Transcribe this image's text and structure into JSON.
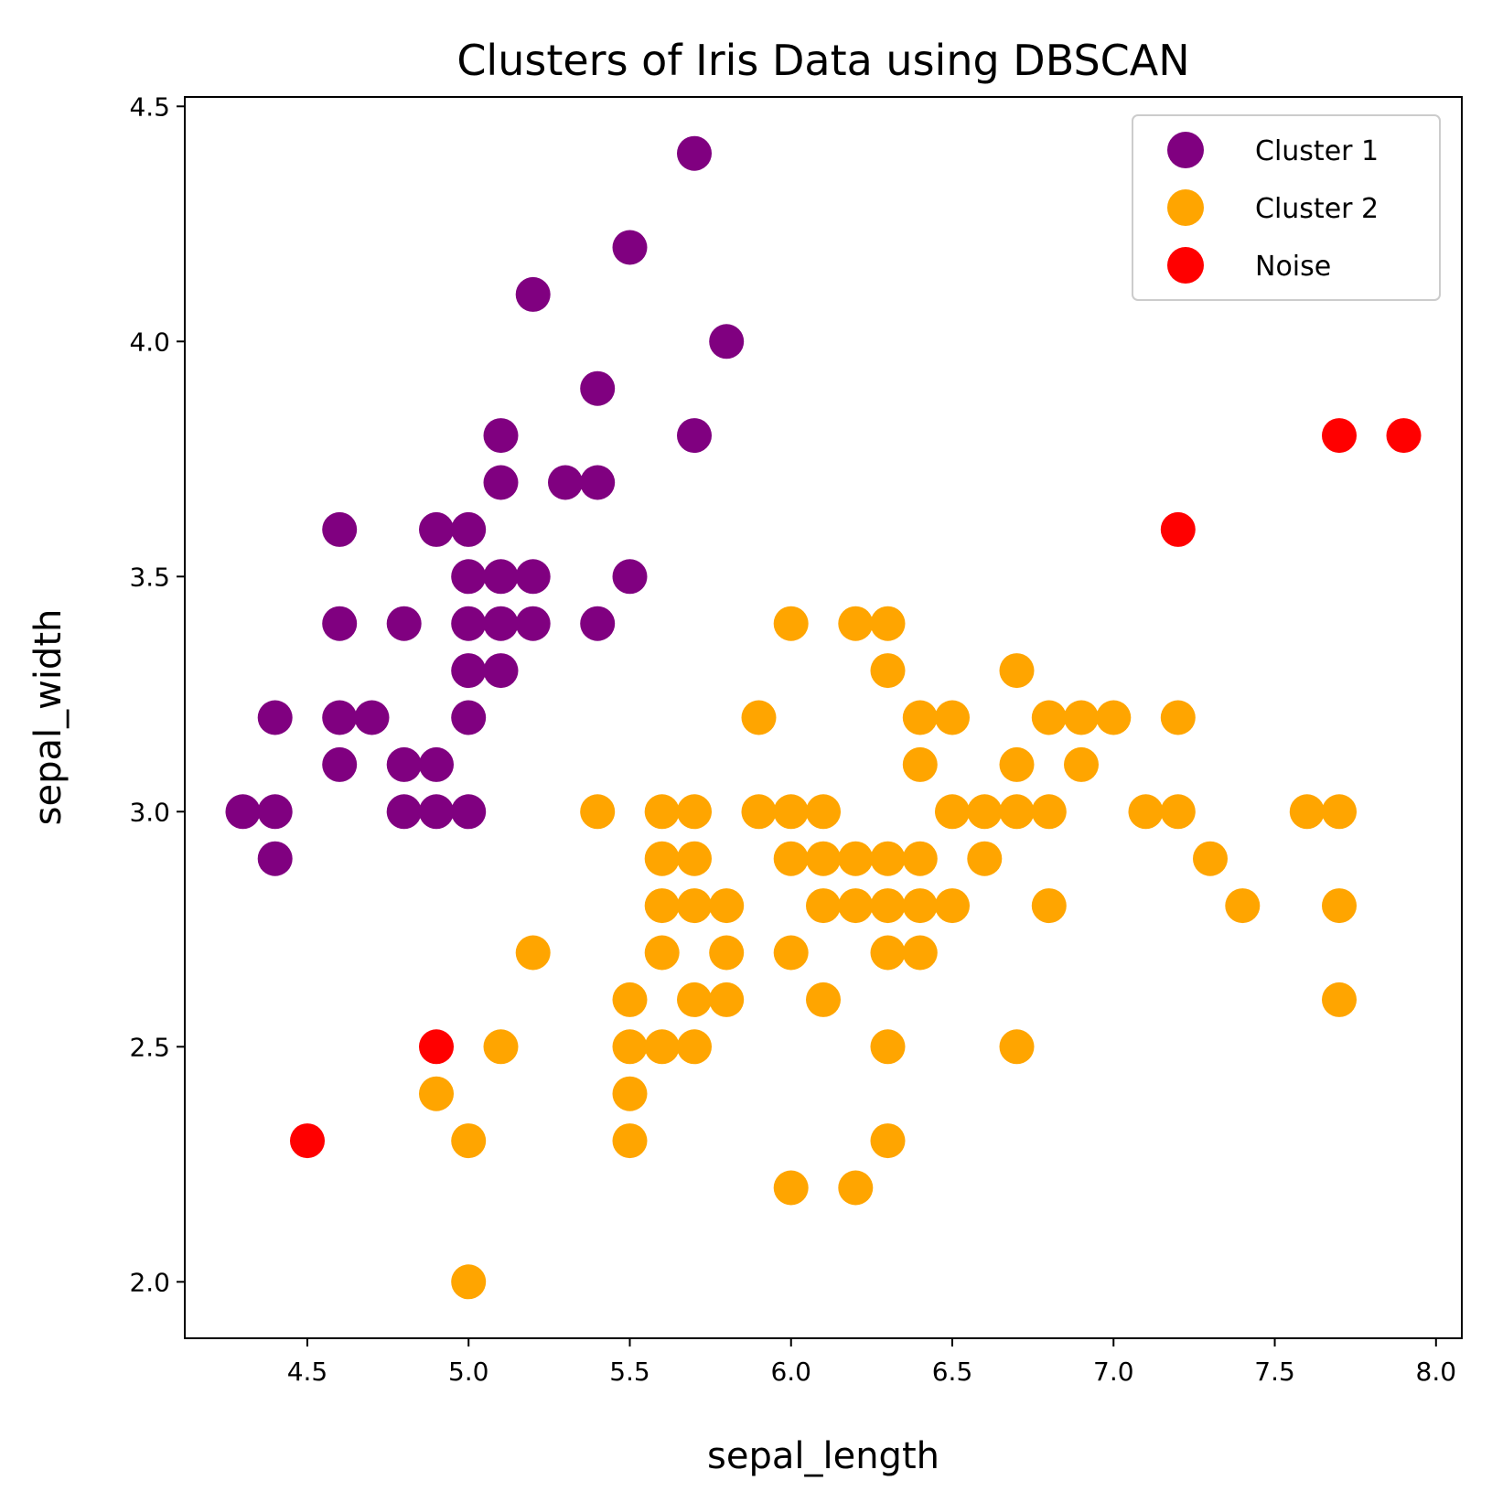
{
  "chart_data": {
    "type": "scatter",
    "title": "Clusters of Iris Data using DBSCAN",
    "xlabel": "sepal_length",
    "ylabel": "sepal_width",
    "xlim": [
      4.12,
      8.08
    ],
    "ylim": [
      1.88,
      4.52
    ],
    "xticks": [
      4.5,
      5.0,
      5.5,
      6.0,
      6.5,
      7.0,
      7.5,
      8.0
    ],
    "xtick_labels": [
      "4.5",
      "5.0",
      "5.5",
      "6.0",
      "6.5",
      "7.0",
      "7.5",
      "8.0"
    ],
    "yticks": [
      2.0,
      2.5,
      3.0,
      3.5,
      4.0,
      4.5
    ],
    "ytick_labels": [
      "2.0",
      "2.5",
      "3.0",
      "3.5",
      "4.0",
      "4.5"
    ],
    "grid": false,
    "legend_position": "top-right",
    "series": [
      {
        "name": "Cluster 1",
        "color": "#800080",
        "points": [
          [
            5.7,
            4.4
          ],
          [
            5.5,
            4.2
          ],
          [
            5.2,
            4.1
          ],
          [
            5.8,
            4.0
          ],
          [
            5.4,
            3.9
          ],
          [
            5.1,
            3.8
          ],
          [
            5.7,
            3.8
          ],
          [
            5.1,
            3.7
          ],
          [
            5.3,
            3.7
          ],
          [
            5.4,
            3.7
          ],
          [
            4.6,
            3.6
          ],
          [
            4.9,
            3.6
          ],
          [
            5.0,
            3.6
          ],
          [
            5.0,
            3.5
          ],
          [
            5.1,
            3.5
          ],
          [
            5.2,
            3.5
          ],
          [
            5.5,
            3.5
          ],
          [
            4.6,
            3.4
          ],
          [
            4.8,
            3.4
          ],
          [
            5.0,
            3.4
          ],
          [
            5.1,
            3.4
          ],
          [
            5.2,
            3.4
          ],
          [
            5.4,
            3.4
          ],
          [
            5.0,
            3.3
          ],
          [
            5.1,
            3.3
          ],
          [
            4.4,
            3.2
          ],
          [
            4.6,
            3.2
          ],
          [
            4.7,
            3.2
          ],
          [
            5.0,
            3.2
          ],
          [
            4.6,
            3.1
          ],
          [
            4.8,
            3.1
          ],
          [
            4.9,
            3.1
          ],
          [
            4.3,
            3.0
          ],
          [
            4.4,
            3.0
          ],
          [
            4.8,
            3.0
          ],
          [
            4.9,
            3.0
          ],
          [
            5.0,
            3.0
          ],
          [
            4.4,
            2.9
          ]
        ]
      },
      {
        "name": "Cluster 2",
        "color": "#FFA500",
        "points": [
          [
            6.0,
            3.4
          ],
          [
            6.2,
            3.4
          ],
          [
            6.3,
            3.4
          ],
          [
            6.3,
            3.3
          ],
          [
            6.7,
            3.3
          ],
          [
            5.9,
            3.2
          ],
          [
            6.4,
            3.2
          ],
          [
            6.5,
            3.2
          ],
          [
            6.8,
            3.2
          ],
          [
            6.9,
            3.2
          ],
          [
            7.0,
            3.2
          ],
          [
            7.2,
            3.2
          ],
          [
            6.4,
            3.1
          ],
          [
            6.7,
            3.1
          ],
          [
            6.9,
            3.1
          ],
          [
            5.4,
            3.0
          ],
          [
            5.6,
            3.0
          ],
          [
            5.7,
            3.0
          ],
          [
            5.9,
            3.0
          ],
          [
            6.0,
            3.0
          ],
          [
            6.1,
            3.0
          ],
          [
            6.5,
            3.0
          ],
          [
            6.6,
            3.0
          ],
          [
            6.7,
            3.0
          ],
          [
            6.8,
            3.0
          ],
          [
            7.1,
            3.0
          ],
          [
            7.2,
            3.0
          ],
          [
            7.6,
            3.0
          ],
          [
            7.7,
            3.0
          ],
          [
            5.6,
            2.9
          ],
          [
            5.7,
            2.9
          ],
          [
            6.0,
            2.9
          ],
          [
            6.1,
            2.9
          ],
          [
            6.2,
            2.9
          ],
          [
            6.3,
            2.9
          ],
          [
            6.4,
            2.9
          ],
          [
            6.6,
            2.9
          ],
          [
            7.3,
            2.9
          ],
          [
            5.6,
            2.8
          ],
          [
            5.7,
            2.8
          ],
          [
            5.8,
            2.8
          ],
          [
            6.1,
            2.8
          ],
          [
            6.2,
            2.8
          ],
          [
            6.3,
            2.8
          ],
          [
            6.4,
            2.8
          ],
          [
            6.5,
            2.8
          ],
          [
            6.8,
            2.8
          ],
          [
            7.4,
            2.8
          ],
          [
            7.7,
            2.8
          ],
          [
            5.2,
            2.7
          ],
          [
            5.6,
            2.7
          ],
          [
            5.8,
            2.7
          ],
          [
            6.0,
            2.7
          ],
          [
            6.3,
            2.7
          ],
          [
            6.4,
            2.7
          ],
          [
            5.5,
            2.6
          ],
          [
            5.7,
            2.6
          ],
          [
            5.8,
            2.6
          ],
          [
            6.1,
            2.6
          ],
          [
            7.7,
            2.6
          ],
          [
            5.1,
            2.5
          ],
          [
            5.5,
            2.5
          ],
          [
            5.6,
            2.5
          ],
          [
            5.7,
            2.5
          ],
          [
            6.3,
            2.5
          ],
          [
            6.7,
            2.5
          ],
          [
            4.9,
            2.4
          ],
          [
            5.5,
            2.4
          ],
          [
            5.0,
            2.3
          ],
          [
            5.5,
            2.3
          ],
          [
            6.3,
            2.3
          ],
          [
            6.0,
            2.2
          ],
          [
            6.2,
            2.2
          ],
          [
            5.0,
            2.0
          ]
        ]
      },
      {
        "name": "Noise",
        "color": "#FF0000",
        "points": [
          [
            7.7,
            3.8
          ],
          [
            7.9,
            3.8
          ],
          [
            7.2,
            3.6
          ],
          [
            4.9,
            2.5
          ],
          [
            4.5,
            2.3
          ]
        ]
      }
    ]
  }
}
